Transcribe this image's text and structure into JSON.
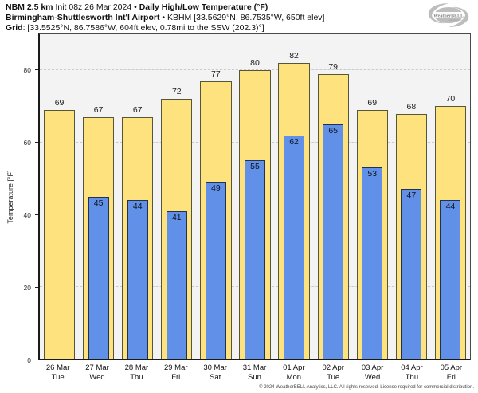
{
  "title": {
    "model": "NBM 2.5 km",
    "init": "Init 08z 26 Mar 2024",
    "bullet": "•",
    "product": "Daily High/Low Temperature (°F)",
    "station": "Birmingham-Shuttlesworth Int'l Airport",
    "station_detail": "KBHM [33.5629°N, 86.7535°W, 650ft elev]",
    "grid_label": "Grid",
    "grid_detail": ": [33.5525°N, 86.7586°W, 604ft elev, 0.78mi to the SSW (202.3)°]"
  },
  "logo": {
    "text": "WeatherBELL",
    "subtext": "Analytics LLC"
  },
  "chart_data": {
    "type": "bar",
    "title": "NBM 2.5 km Daily High/Low Temperature (°F) — KBHM",
    "xlabel": "",
    "ylabel": "Temperature [°F]",
    "ylim": [
      0,
      90
    ],
    "yticks": [
      0,
      20,
      40,
      60,
      80
    ],
    "grid": "horizontal-dashed",
    "legend_position": "none",
    "categories": [
      "26 Mar",
      "27 Mar",
      "28 Mar",
      "29 Mar",
      "30 Mar",
      "31 Mar",
      "01 Apr",
      "02 Apr",
      "03 Apr",
      "04 Apr",
      "05 Apr"
    ],
    "weekdays": [
      "Tue",
      "Wed",
      "Thu",
      "Fri",
      "Sat",
      "Sun",
      "Mon",
      "Tue",
      "Wed",
      "Thu",
      "Fri"
    ],
    "series": [
      {
        "name": "Daily High",
        "color": "#FDE27E",
        "values": [
          69,
          67,
          67,
          72,
          77,
          80,
          82,
          79,
          69,
          68,
          70
        ]
      },
      {
        "name": "Daily Low",
        "color": "#6190E8",
        "values": [
          null,
          45,
          44,
          41,
          49,
          55,
          62,
          65,
          53,
          47,
          44
        ]
      }
    ]
  },
  "colors": {
    "plot_background": "#f3f3f3",
    "gridline": "#cbcbcb",
    "high_bar": "#FDE27E",
    "low_bar": "#6190E8",
    "axis": "#1a1a1a"
  },
  "footer": {
    "copyright": "© 2024 WeatherBELL Analytics, LLC. All rights reserved. License required for commercial distribution."
  }
}
